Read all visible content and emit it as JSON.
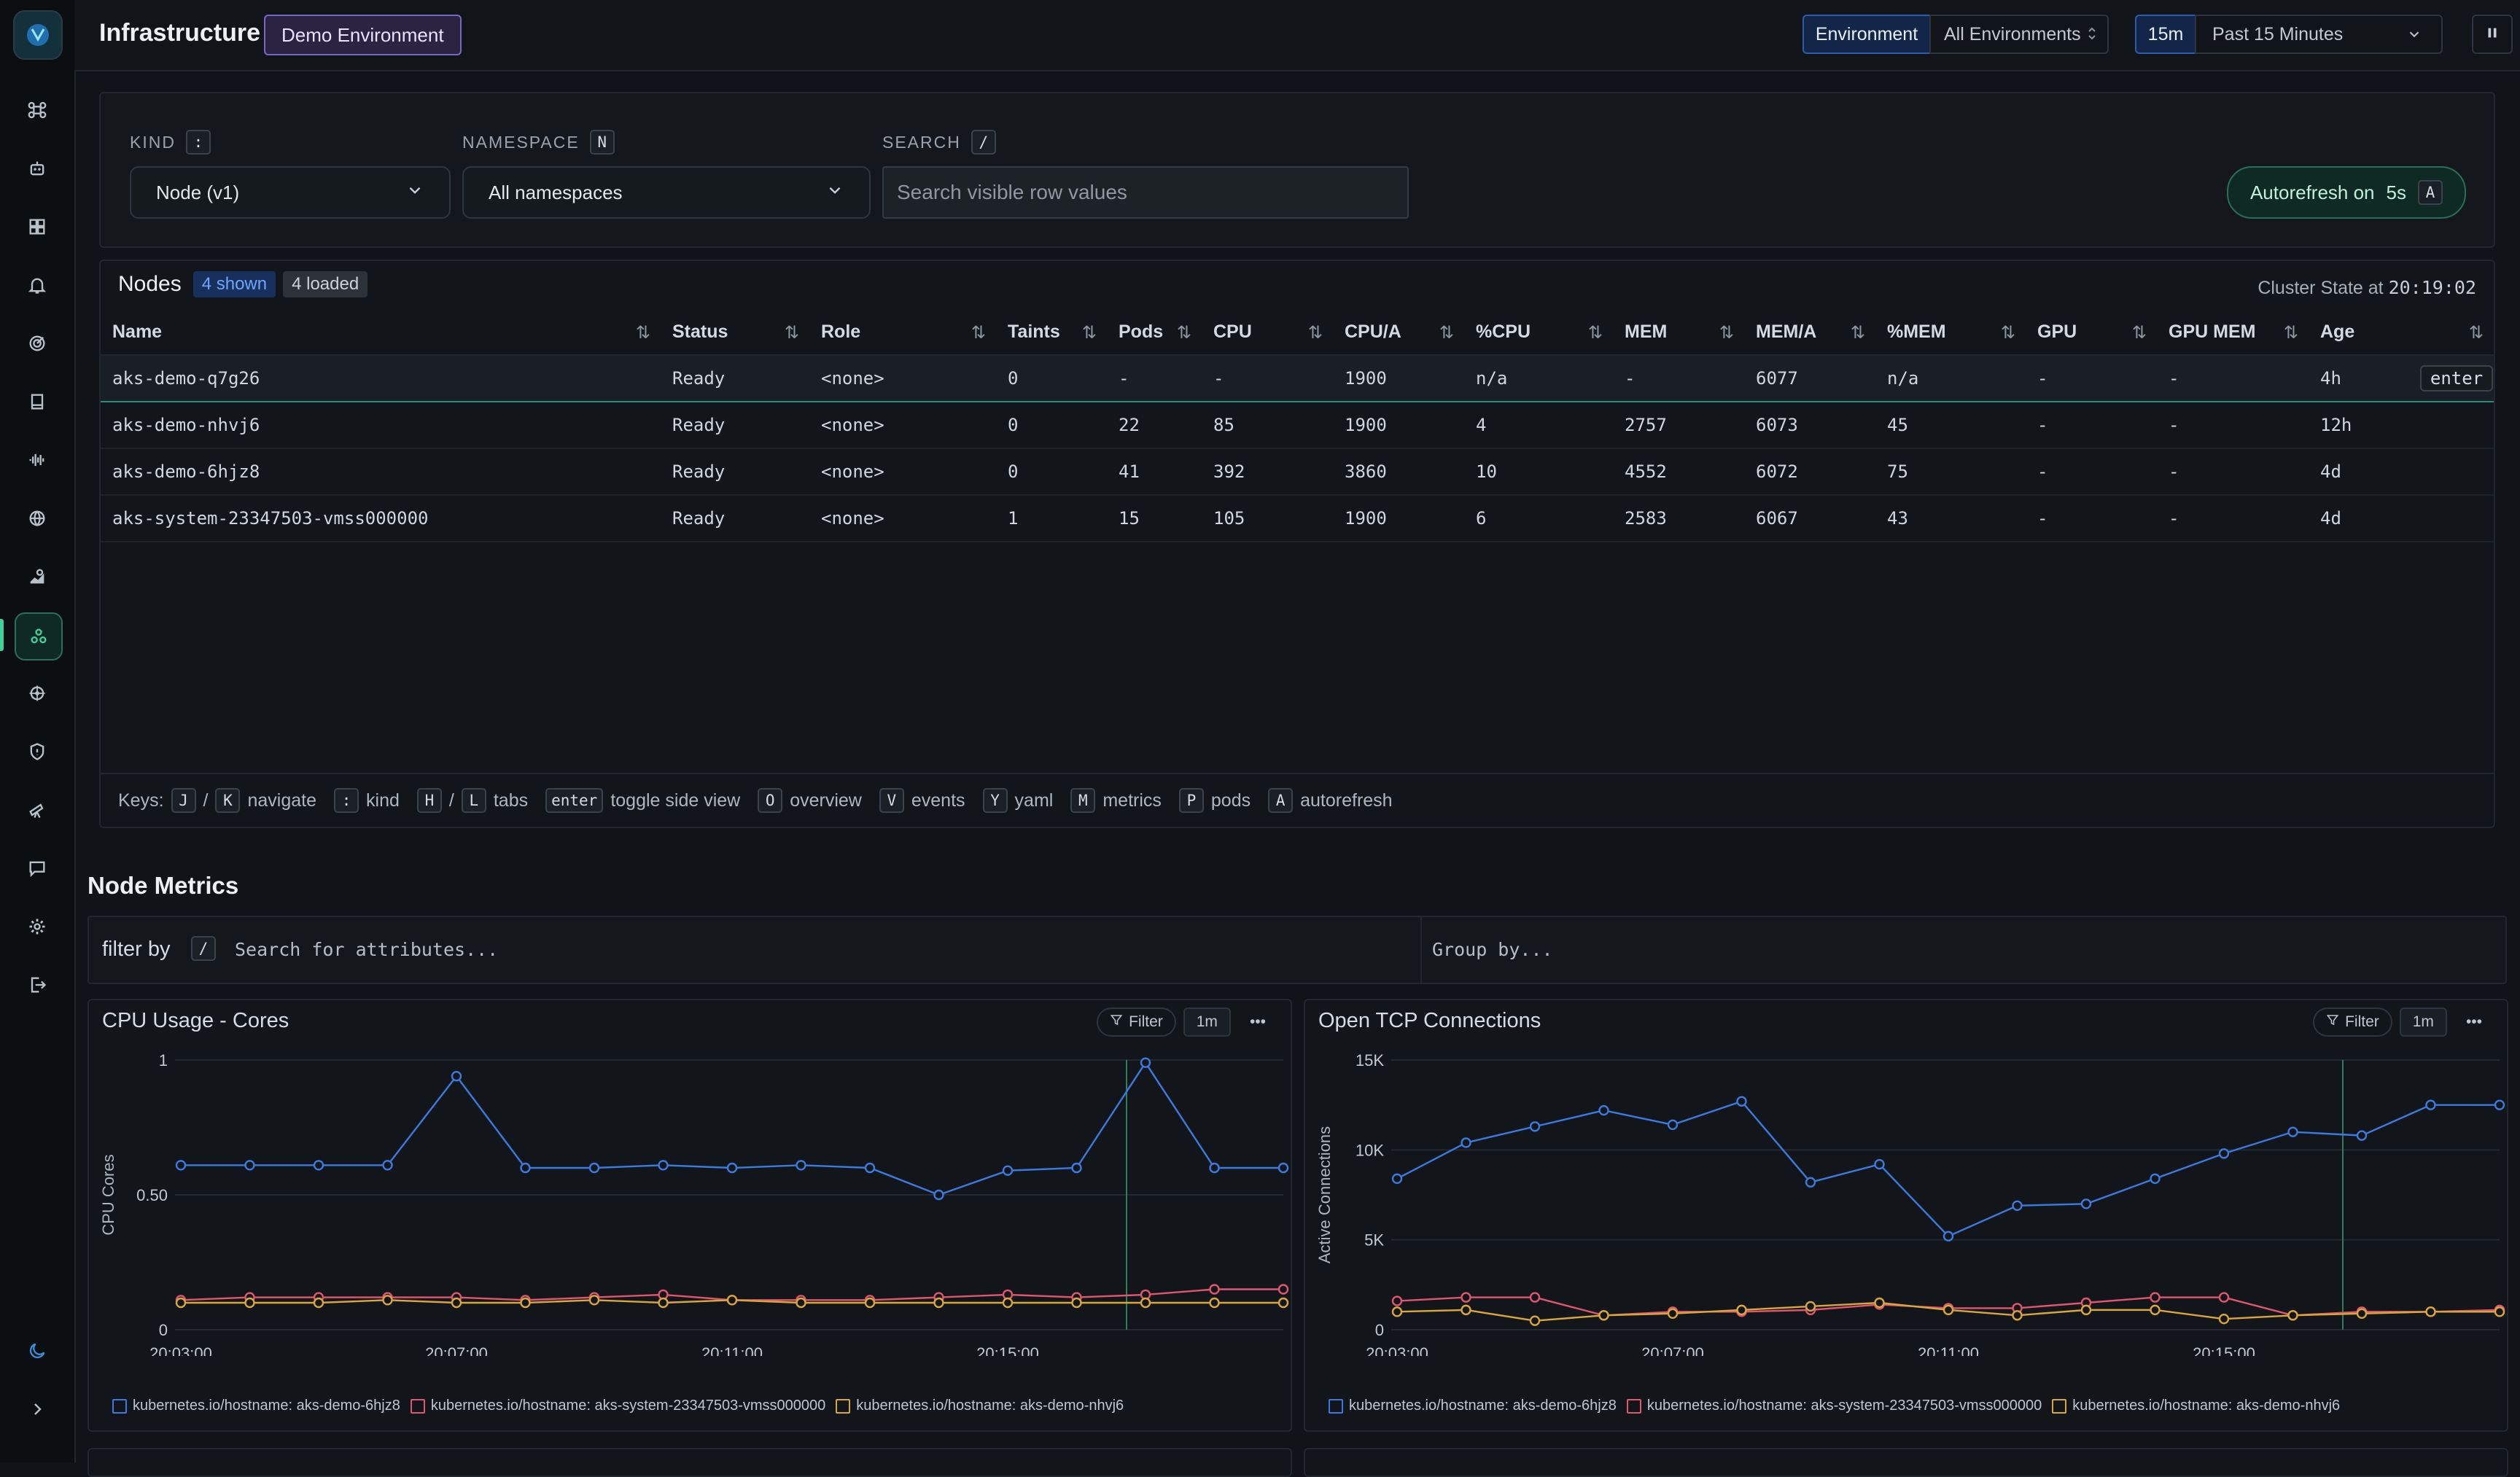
{
  "header": {
    "title": "Infrastructure",
    "env_badge": "Demo Environment",
    "env_label": "Environment",
    "env_value": "All Environments",
    "range_short": "15m",
    "range_label": "Past 15 Minutes"
  },
  "sidebar": {
    "items": [
      "command-icon",
      "robot-icon",
      "dashboard-icon",
      "bell-icon",
      "radar-icon",
      "book-icon",
      "waveform-icon",
      "globe-icon",
      "map-icon",
      "kubernetes-cluster-icon",
      "helm-icon",
      "shield-icon",
      "telescope-icon",
      "chat-icon",
      "gear-icon",
      "logout-icon"
    ],
    "active_index": 9,
    "bottom": [
      "moon-icon",
      "chevron-right-icon"
    ]
  },
  "filters": {
    "kind_label": "KIND",
    "kind_key": ":",
    "kind_value": "Node (v1)",
    "namespace_label": "NAMESPACE",
    "namespace_key": "N",
    "namespace_value": "All namespaces",
    "search_label": "SEARCH",
    "search_key": "/",
    "search_placeholder": "Search visible row values",
    "autorefresh_label": "Autorefresh on",
    "autorefresh_interval": "5s",
    "autorefresh_key": "A"
  },
  "nodes": {
    "title": "Nodes",
    "shown": "4 shown",
    "loaded": "4 loaded",
    "cluster_state_label": "Cluster State at",
    "cluster_state_time": "20:19:02",
    "columns": [
      "Name",
      "Status",
      "Role",
      "Taints",
      "Pods",
      "CPU",
      "CPU/A",
      "%CPU",
      "MEM",
      "MEM/A",
      "%MEM",
      "GPU",
      "GPU MEM",
      "Age"
    ],
    "rows": [
      [
        "aks-demo-q7g26",
        "Ready",
        "<none>",
        "0",
        "-",
        "-",
        "1900",
        "n/a",
        "-",
        "6077",
        "n/a",
        "-",
        "-",
        "4h"
      ],
      [
        "aks-demo-nhvj6",
        "Ready",
        "<none>",
        "0",
        "22",
        "85",
        "1900",
        "4",
        "2757",
        "6073",
        "45",
        "-",
        "-",
        "12h"
      ],
      [
        "aks-demo-6hjz8",
        "Ready",
        "<none>",
        "0",
        "41",
        "392",
        "3860",
        "10",
        "4552",
        "6072",
        "75",
        "-",
        "-",
        "4d"
      ],
      [
        "aks-system-23347503-vmss000000",
        "Ready",
        "<none>",
        "1",
        "15",
        "105",
        "1900",
        "6",
        "2583",
        "6067",
        "43",
        "-",
        "-",
        "4d"
      ]
    ],
    "selected_row": 0,
    "enter_hint": "enter",
    "keys": {
      "label": "Keys:",
      "j": "J",
      "k": "K",
      "navigate": "navigate",
      "colon": ":",
      "kind": "kind",
      "h": "H",
      "l": "L",
      "tabs": "tabs",
      "enter": "enter",
      "toggle": "toggle side view",
      "o": "O",
      "overview": "overview",
      "v": "V",
      "events": "events",
      "y": "Y",
      "yaml": "yaml",
      "m": "M",
      "metrics": "metrics",
      "p": "P",
      "pods": "pods",
      "a": "A",
      "autorefresh": "autorefresh",
      "slash": "/"
    }
  },
  "metrics": {
    "title": "Node Metrics",
    "filter_label": "filter by",
    "filter_key": "/",
    "filter_placeholder": "Search for attributes...",
    "group_placeholder": "Group by...",
    "filter_btn": "Filter",
    "interval_btn": "1m",
    "more": "•••"
  },
  "colors": {
    "blue": "#3b7be0",
    "red": "#e0566e",
    "yellow": "#d8a63c",
    "accent": "#3fd19a"
  },
  "chart_data": [
    {
      "type": "line",
      "title": "CPU Usage - Cores",
      "ylabel": "CPU Cores",
      "ylim": [
        0,
        1
      ],
      "yticks": [
        "0",
        "0.50",
        "1"
      ],
      "xticks": [
        "20:03:00",
        "20:07:00",
        "20:11:00",
        "20:15:00"
      ],
      "x": [
        "20:03:00",
        "20:04:00",
        "20:05:00",
        "20:06:00",
        "20:07:00",
        "20:08:00",
        "20:09:00",
        "20:10:00",
        "20:11:00",
        "20:12:00",
        "20:13:00",
        "20:14:00",
        "20:15:00",
        "20:16:00",
        "20:17:00",
        "20:18:00",
        "20:19:00"
      ],
      "series": [
        {
          "name": "kubernetes.io/hostname: aks-demo-6hjz8",
          "color": "#3b7be0",
          "values": [
            0.61,
            0.61,
            0.61,
            0.61,
            0.94,
            0.6,
            0.6,
            0.61,
            0.6,
            0.61,
            0.6,
            0.5,
            0.59,
            0.6,
            0.99,
            0.6,
            0.6
          ]
        },
        {
          "name": "kubernetes.io/hostname: aks-system-23347503-vmss000000",
          "color": "#e0566e",
          "values": [
            0.11,
            0.12,
            0.12,
            0.12,
            0.12,
            0.11,
            0.12,
            0.13,
            0.11,
            0.11,
            0.11,
            0.12,
            0.13,
            0.12,
            0.13,
            0.15,
            0.15
          ]
        },
        {
          "name": "kubernetes.io/hostname: aks-demo-nhvj6",
          "color": "#d8a63c",
          "values": [
            0.1,
            0.1,
            0.1,
            0.11,
            0.1,
            0.1,
            0.11,
            0.1,
            0.11,
            0.1,
            0.1,
            0.1,
            0.1,
            0.1,
            0.1,
            0.1,
            0.1
          ]
        }
      ]
    },
    {
      "type": "line",
      "title": "Open TCP Connections",
      "ylabel": "Active Connections",
      "ylim": [
        0,
        15000
      ],
      "yticks": [
        "0",
        "5K",
        "10K",
        "15K"
      ],
      "xticks": [
        "20:03:00",
        "20:07:00",
        "20:11:00",
        "20:15:00"
      ],
      "x": [
        "20:03:00",
        "20:04:00",
        "20:05:00",
        "20:06:00",
        "20:07:00",
        "20:08:00",
        "20:09:00",
        "20:10:00",
        "20:11:00",
        "20:12:00",
        "20:13:00",
        "20:14:00",
        "20:15:00",
        "20:16:00",
        "20:17:00",
        "20:18:00",
        "20:19:00"
      ],
      "series": [
        {
          "name": "kubernetes.io/hostname: aks-demo-6hjz8",
          "color": "#3b7be0",
          "values": [
            8400,
            10400,
            11300,
            12200,
            11400,
            12700,
            8200,
            9200,
            5200,
            6900,
            7000,
            8400,
            9800,
            11000,
            10800,
            12500,
            12500
          ]
        },
        {
          "name": "kubernetes.io/hostname: aks-system-23347503-vmss000000",
          "color": "#e0566e",
          "values": [
            1600,
            1800,
            1800,
            800,
            1000,
            1000,
            1100,
            1400,
            1200,
            1200,
            1500,
            1800,
            1800,
            800,
            1000,
            1000,
            1100
          ]
        },
        {
          "name": "kubernetes.io/hostname: aks-demo-nhvj6",
          "color": "#d8a63c",
          "values": [
            1000,
            1100,
            500,
            800,
            900,
            1100,
            1300,
            1500,
            1100,
            800,
            1100,
            1100,
            600,
            800,
            900,
            1000,
            1000
          ]
        }
      ]
    }
  ]
}
